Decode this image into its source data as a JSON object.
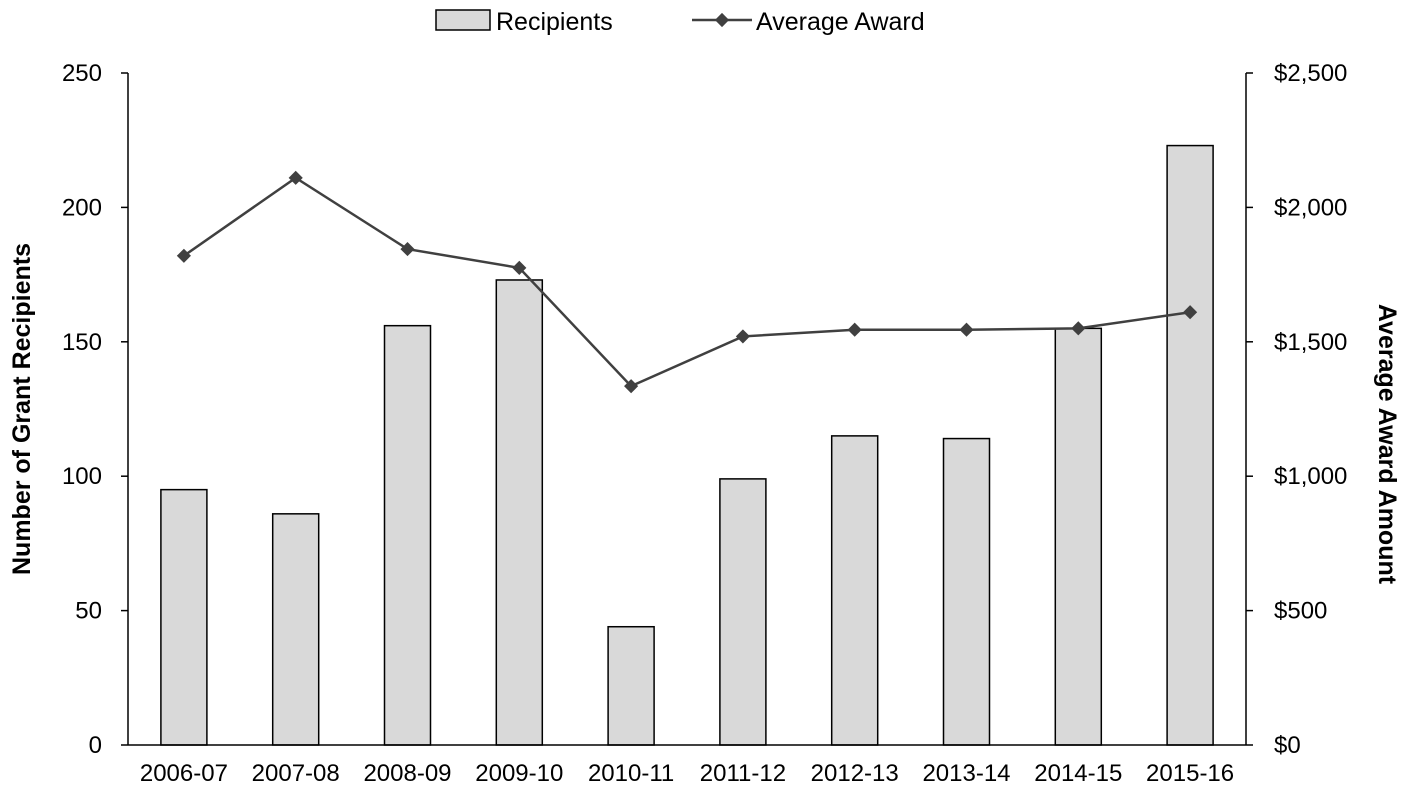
{
  "chart_data": {
    "type": "bar+line",
    "categories": [
      "2006-07",
      "2007-08",
      "2008-09",
      "2009-10",
      "2010-11",
      "2011-12",
      "2012-13",
      "2013-14",
      "2014-15",
      "2015-16"
    ],
    "series": [
      {
        "name": "Recipients",
        "type": "bar",
        "axis": "left",
        "values": [
          95,
          86,
          156,
          173,
          44,
          99,
          115,
          114,
          155,
          223
        ],
        "color": "#d9d9d9"
      },
      {
        "name": "Average Award",
        "type": "line",
        "axis": "right",
        "values": [
          1820,
          2110,
          1845,
          1775,
          1335,
          1520,
          1545,
          1545,
          1550,
          1610
        ],
        "color": "#404040"
      }
    ],
    "ylabel_left": "Number of Grant Recipients",
    "ylabel_right": "Average Award Amount",
    "ylim_left": [
      0,
      250
    ],
    "ylim_right": [
      0,
      2500
    ],
    "yticks_left": [
      "0",
      "50",
      "100",
      "150",
      "200",
      "250"
    ],
    "yticks_right": [
      "$0",
      "$500",
      "$1,000",
      "$1,500",
      "$2,000",
      "$2,500"
    ],
    "grid": false,
    "legend_position": "top"
  }
}
